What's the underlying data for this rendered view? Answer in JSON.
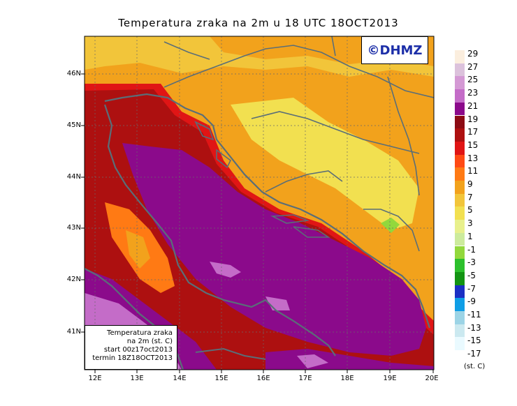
{
  "title": "Temperatura zraka na 2m u 18 UTC 18OCT2013",
  "logo_text": "©DHMZ",
  "info_box": {
    "line1": "Temperatura zraka",
    "line2": "na 2m (st. C)",
    "line3": "start 00z17oct2013",
    "line4": "termin 18Z18OCT2013"
  },
  "legend": {
    "units": "(st. C)",
    "labels": [
      "29",
      "27",
      "25",
      "23",
      "21",
      "19",
      "17",
      "15",
      "13",
      "11",
      "9",
      "7",
      "5",
      "3",
      "1",
      "-1",
      "-3",
      "-5",
      "-7",
      "-9",
      "-11",
      "-13",
      "-15",
      "-17"
    ],
    "colors": [
      "#fbeede",
      "#dcc2dc",
      "#d499d4",
      "#c46cc8",
      "#8b0a8b",
      "#8c0b14",
      "#ad1010",
      "#e01515",
      "#ff4a14",
      "#ff7a14",
      "#f2a21c",
      "#f2c53a",
      "#f2e050",
      "#e8f08c",
      "#cceb9c",
      "#92d83c",
      "#2cc02c",
      "#139413",
      "#1b2fc4",
      "#0f9ee6",
      "#9cd4e6",
      "#cbe9f0",
      "#eafaff"
    ]
  },
  "axes": {
    "lat_ticks": [
      "46N",
      "45N",
      "44N",
      "43N",
      "42N",
      "41N"
    ],
    "lon_ticks": [
      "12E",
      "13E",
      "14E",
      "15E",
      "16E",
      "17E",
      "18E",
      "19E",
      "20E"
    ]
  },
  "colors": {
    "sea_purple": "#8b0a8b",
    "land_orange": "#f2a21c",
    "coastline": "#5a6e78"
  }
}
